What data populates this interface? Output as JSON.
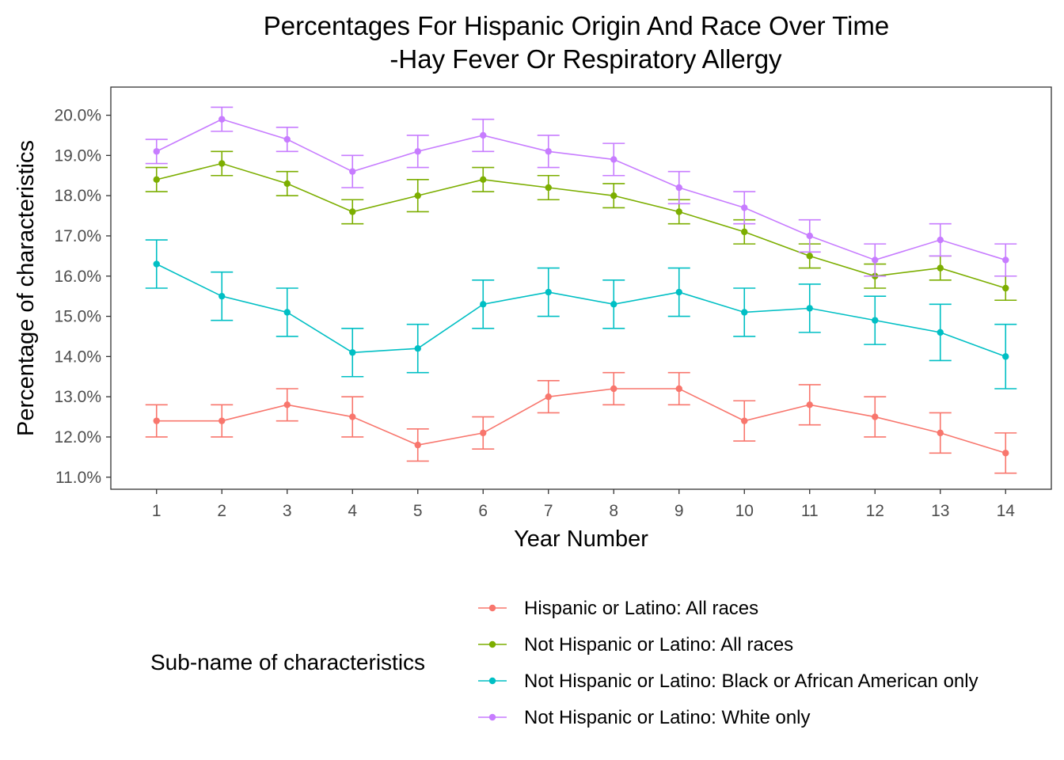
{
  "chart_data": {
    "type": "line",
    "title_line1": "Percentages For Hispanic Origin And Race Over Time",
    "title_line2": "-Hay Fever Or Respiratory Allergy",
    "xlabel": "Year Number",
    "ylabel": "Percentage of characteristics",
    "x": [
      1,
      2,
      3,
      4,
      5,
      6,
      7,
      8,
      9,
      10,
      11,
      12,
      13,
      14
    ],
    "x_tick_labels": [
      "1",
      "2",
      "3",
      "4",
      "5",
      "6",
      "7",
      "8",
      "9",
      "10",
      "11",
      "12",
      "13",
      "14"
    ],
    "xlim": [
      0.3,
      14.7
    ],
    "ylim": [
      10.7,
      20.7
    ],
    "y_ticks": [
      11,
      12,
      13,
      14,
      15,
      16,
      17,
      18,
      19,
      20
    ],
    "y_tick_labels": [
      "11.0%",
      "12.0%",
      "13.0%",
      "14.0%",
      "15.0%",
      "16.0%",
      "17.0%",
      "18.0%",
      "19.0%",
      "20.0%"
    ],
    "grid": false,
    "error_bars": true,
    "legend": {
      "title": "Sub-name of characteristics",
      "position": "bottom"
    },
    "series": [
      {
        "name": "Hispanic or Latino: All races",
        "color": "#F8766D",
        "values": [
          12.4,
          12.4,
          12.8,
          12.5,
          11.8,
          12.1,
          13.0,
          13.2,
          13.2,
          12.4,
          12.8,
          12.5,
          12.1,
          11.6
        ],
        "lower": [
          12.0,
          12.0,
          12.4,
          12.0,
          11.4,
          11.7,
          12.6,
          12.8,
          12.8,
          11.9,
          12.3,
          12.0,
          11.6,
          11.1
        ],
        "upper": [
          12.8,
          12.8,
          13.2,
          13.0,
          12.2,
          12.5,
          13.4,
          13.6,
          13.6,
          12.9,
          13.3,
          13.0,
          12.6,
          12.1
        ]
      },
      {
        "name": "Not Hispanic or Latino: All races",
        "color": "#7CAE00",
        "values": [
          18.4,
          18.8,
          18.3,
          17.6,
          18.0,
          18.4,
          18.2,
          18.0,
          17.6,
          17.1,
          16.5,
          16.0,
          16.2,
          15.7
        ],
        "lower": [
          18.1,
          18.5,
          18.0,
          17.3,
          17.6,
          18.1,
          17.9,
          17.7,
          17.3,
          16.8,
          16.2,
          15.7,
          15.9,
          15.4
        ],
        "upper": [
          18.7,
          19.1,
          18.6,
          17.9,
          18.4,
          18.7,
          18.5,
          18.3,
          17.9,
          17.4,
          16.8,
          16.3,
          16.5,
          16.0
        ]
      },
      {
        "name": "Not Hispanic or Latino: Black or African American only",
        "color": "#00BFC4",
        "values": [
          16.3,
          15.5,
          15.1,
          14.1,
          14.2,
          15.3,
          15.6,
          15.3,
          15.6,
          15.1,
          15.2,
          14.9,
          14.6,
          14.0
        ],
        "lower": [
          15.7,
          14.9,
          14.5,
          13.5,
          13.6,
          14.7,
          15.0,
          14.7,
          15.0,
          14.5,
          14.6,
          14.3,
          13.9,
          13.2
        ],
        "upper": [
          16.9,
          16.1,
          15.7,
          14.7,
          14.8,
          15.9,
          16.2,
          15.9,
          16.2,
          15.7,
          15.8,
          15.5,
          15.3,
          14.8
        ]
      },
      {
        "name": "Not Hispanic or Latino: White only",
        "color": "#C77CFF",
        "values": [
          19.1,
          19.9,
          19.4,
          18.6,
          19.1,
          19.5,
          19.1,
          18.9,
          18.2,
          17.7,
          17.0,
          16.4,
          16.9,
          16.4
        ],
        "lower": [
          18.8,
          19.6,
          19.1,
          18.2,
          18.7,
          19.1,
          18.7,
          18.5,
          17.8,
          17.3,
          16.6,
          16.0,
          16.5,
          16.0
        ],
        "upper": [
          19.4,
          20.2,
          19.7,
          19.0,
          19.5,
          19.9,
          19.5,
          19.3,
          18.6,
          18.1,
          17.4,
          16.8,
          17.3,
          16.8
        ]
      }
    ]
  }
}
